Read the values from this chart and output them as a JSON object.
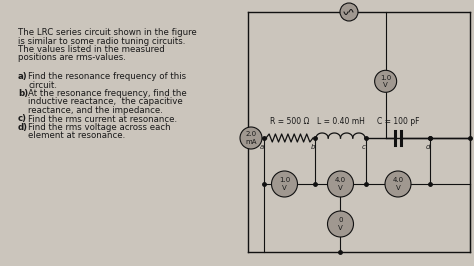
{
  "bg_color": "#cbc5bc",
  "text_color": "#1a1a1a",
  "title_lines": [
    "The LRC series circuit shown in the figure",
    "is similar to some radio tuning circuits.",
    "The values listed in the measured",
    "positions are rms-values."
  ],
  "questions": [
    [
      "a)",
      "Find the resonance frequency of this"
    ],
    [
      "",
      "circuit."
    ],
    [
      "b)",
      "At the resonance frequency, find the"
    ],
    [
      "",
      "inductive reactance,  the capacitive"
    ],
    [
      "",
      "reactance, and the impedance."
    ],
    [
      "c)",
      "Find the rms current at resonance."
    ],
    [
      "d)",
      "Find the rms voltage across each"
    ],
    [
      "",
      "element at resonance."
    ]
  ],
  "circuit": {
    "R_label": "R = 500 Ω",
    "L_label": "L = 0.40 mH",
    "C_label": "C = 100 pF",
    "current_label": "2.0\nmA",
    "v_top_label": "1.0\nV",
    "v_ab_label": "1.0\nV",
    "v_bc_label": "4.0\nV",
    "v_cd_label": "4.0\nV",
    "v_total_label": "0\nV",
    "nodes": [
      "a",
      "b",
      "c",
      "d"
    ]
  },
  "circle_color": "#a09890",
  "wire_color": "#111111",
  "font_size_title": 6.2,
  "font_size_q": 6.2,
  "font_size_circ": 5.0
}
